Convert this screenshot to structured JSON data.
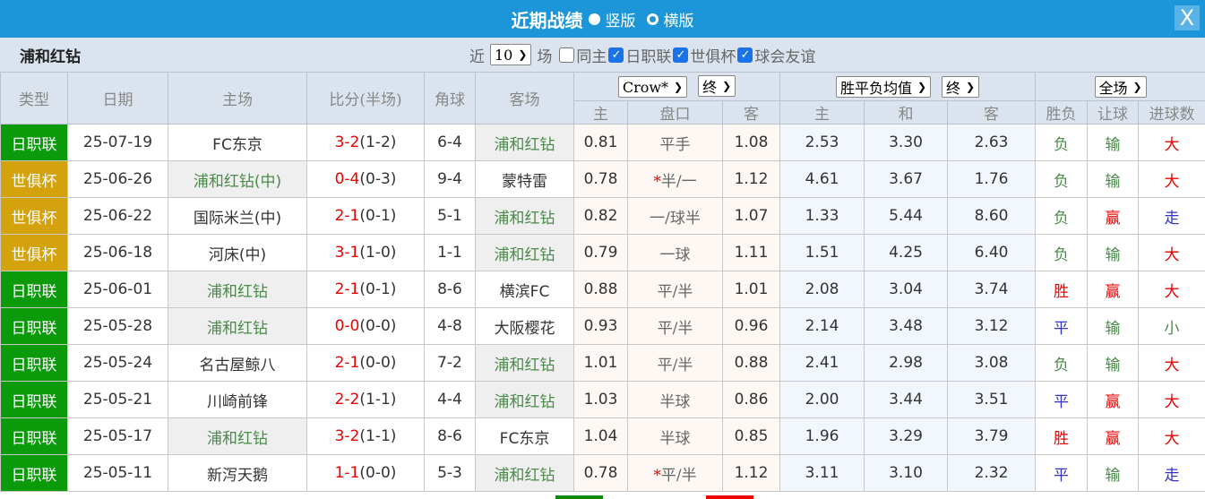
{
  "title": {
    "text": "近期战绩",
    "opt1": "竖版",
    "opt2": "横版",
    "close": "X"
  },
  "filter": {
    "team": "浦和红钻",
    "near": "近",
    "count": "10",
    "unit": "场",
    "same_home": "同主",
    "same_home_checked": false,
    "leagues": [
      {
        "label": "日职联",
        "checked": true
      },
      {
        "label": "世俱杯",
        "checked": true
      },
      {
        "label": "球会友谊",
        "checked": true
      }
    ]
  },
  "header": {
    "type": "类型",
    "date": "日期",
    "home": "主场",
    "score": "比分(半场)",
    "corner": "角球",
    "away": "客场",
    "company": "Crow*",
    "company_stage": "终",
    "odds_type": "胜平负均值",
    "odds_stage": "终",
    "period": "全场",
    "sub": [
      "主",
      "盘口",
      "客",
      "主",
      "和",
      "客",
      "胜负",
      "让球",
      "进球数"
    ]
  },
  "colors": {
    "日职联": "#0a9a0a",
    "世俱杯": "#d4a20c",
    "title_bar": "#1c96d8"
  },
  "rows": [
    {
      "type": "日职联",
      "date": "25-07-19",
      "home": "FC东京",
      "ours": "away",
      "ft": "3-2",
      "ht": "(1-2)",
      "corner": "6-4",
      "away": "浦和红钻",
      "o1": "0.81",
      "line": "平手",
      "star": false,
      "o2": "1.08",
      "h": "2.53",
      "d": "3.30",
      "a": "2.63",
      "res": "负",
      "hc": "输",
      "ou": "大"
    },
    {
      "type": "世俱杯",
      "date": "25-06-26",
      "home": "浦和红钻(中)",
      "ours": "home",
      "ft": "0-4",
      "ht": "(0-3)",
      "corner": "9-4",
      "away": "蒙特雷",
      "o1": "0.78",
      "line": "半/一",
      "star": true,
      "o2": "1.12",
      "h": "4.61",
      "d": "3.67",
      "a": "1.76",
      "res": "负",
      "hc": "输",
      "ou": "大"
    },
    {
      "type": "世俱杯",
      "date": "25-06-22",
      "home": "国际米兰(中)",
      "ours": "away",
      "ft": "2-1",
      "ht": "(0-1)",
      "corner": "5-1",
      "away": "浦和红钻",
      "o1": "0.82",
      "line": "一/球半",
      "star": false,
      "o2": "1.07",
      "h": "1.33",
      "d": "5.44",
      "a": "8.60",
      "res": "负",
      "hc": "赢",
      "ou": "走"
    },
    {
      "type": "世俱杯",
      "date": "25-06-18",
      "home": "河床(中)",
      "ours": "away",
      "ft": "3-1",
      "ht": "(1-0)",
      "corner": "1-1",
      "away": "浦和红钻",
      "o1": "0.79",
      "line": "一球",
      "star": false,
      "o2": "1.11",
      "h": "1.51",
      "d": "4.25",
      "a": "6.40",
      "res": "负",
      "hc": "输",
      "ou": "大"
    },
    {
      "type": "日职联",
      "date": "25-06-01",
      "home": "浦和红钻",
      "ours": "home",
      "ft": "2-1",
      "ht": "(0-1)",
      "corner": "8-6",
      "away": "横滨FC",
      "o1": "0.88",
      "line": "平/半",
      "star": false,
      "o2": "1.01",
      "h": "2.08",
      "d": "3.04",
      "a": "3.74",
      "res": "胜",
      "hc": "赢",
      "ou": "大"
    },
    {
      "type": "日职联",
      "date": "25-05-28",
      "home": "浦和红钻",
      "ours": "home",
      "ft": "0-0",
      "ht": "(0-0)",
      "corner": "4-8",
      "away": "大阪樱花",
      "o1": "0.93",
      "line": "平/半",
      "star": false,
      "o2": "0.96",
      "h": "2.14",
      "d": "3.48",
      "a": "3.12",
      "res": "平",
      "hc": "输",
      "ou": "小"
    },
    {
      "type": "日职联",
      "date": "25-05-24",
      "home": "名古屋鲸八",
      "ours": "away",
      "ft": "2-1",
      "ht": "(0-0)",
      "corner": "7-2",
      "away": "浦和红钻",
      "o1": "1.01",
      "line": "平/半",
      "star": false,
      "o2": "0.88",
      "h": "2.41",
      "d": "2.98",
      "a": "3.08",
      "res": "负",
      "hc": "输",
      "ou": "大"
    },
    {
      "type": "日职联",
      "date": "25-05-21",
      "home": "川崎前锋",
      "ours": "away",
      "ft": "2-2",
      "ht": "(1-1)",
      "corner": "4-4",
      "away": "浦和红钻",
      "o1": "1.03",
      "line": "半球",
      "star": false,
      "o2": "0.86",
      "h": "2.00",
      "d": "3.44",
      "a": "3.51",
      "res": "平",
      "hc": "赢",
      "ou": "大"
    },
    {
      "type": "日职联",
      "date": "25-05-17",
      "home": "浦和红钻",
      "ours": "home",
      "ft": "3-2",
      "ht": "(1-1)",
      "corner": "8-6",
      "away": "FC东京",
      "o1": "1.04",
      "line": "半球",
      "star": false,
      "o2": "0.85",
      "h": "1.96",
      "d": "3.29",
      "a": "3.79",
      "res": "胜",
      "hc": "赢",
      "ou": "大"
    },
    {
      "type": "日职联",
      "date": "25-05-11",
      "home": "新泻天鹅",
      "ours": "away",
      "ft": "1-1",
      "ht": "(0-0)",
      "corner": "5-3",
      "away": "浦和红钻",
      "o1": "0.78",
      "line": "平/半",
      "star": true,
      "o2": "1.12",
      "h": "3.11",
      "d": "3.10",
      "a": "2.32",
      "res": "平",
      "hc": "输",
      "ou": "走"
    }
  ]
}
